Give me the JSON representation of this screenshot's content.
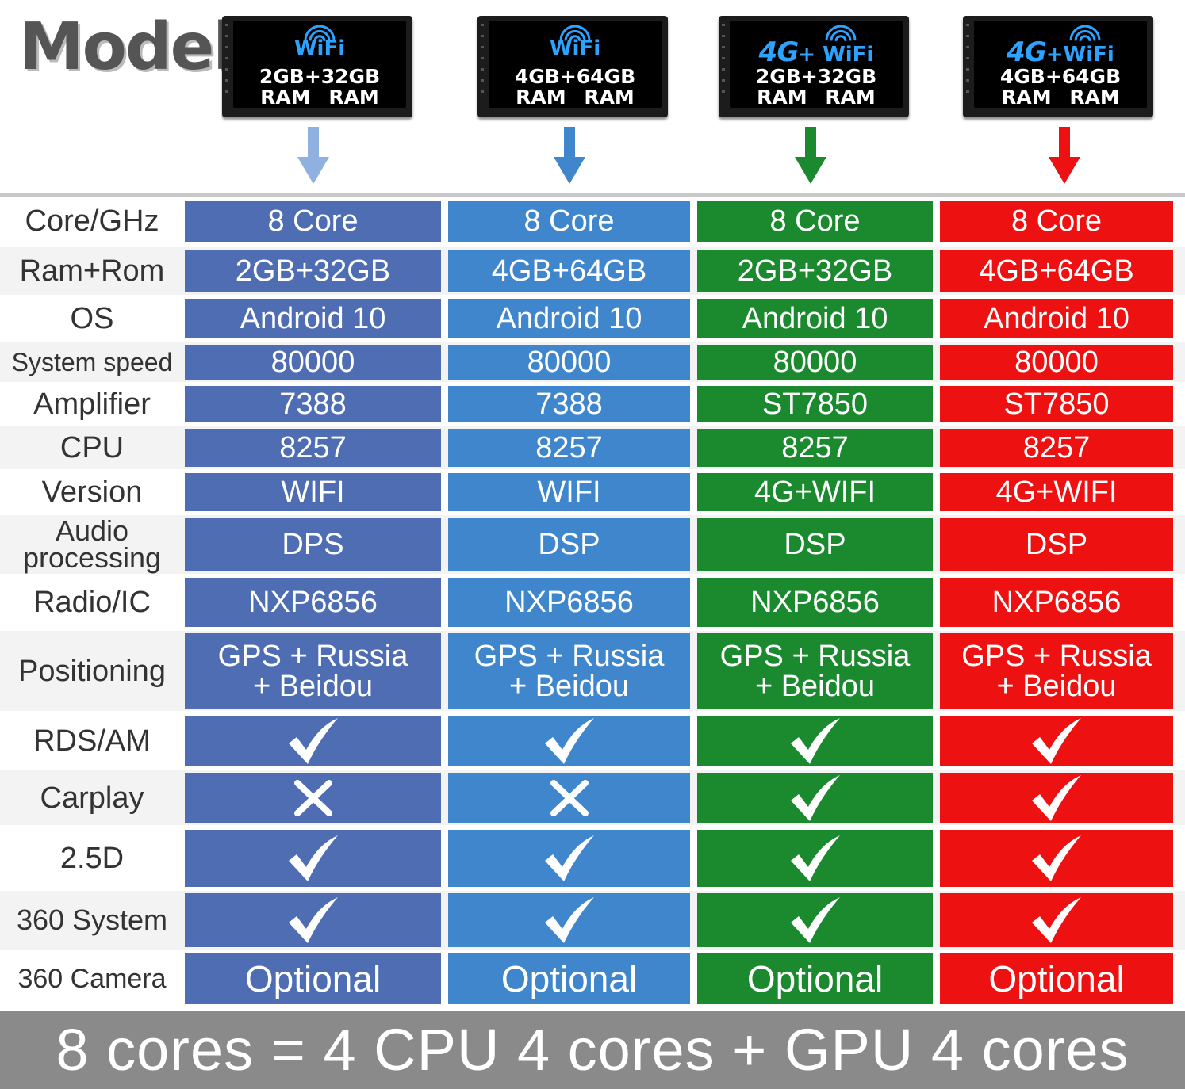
{
  "header": {
    "title": "Model"
  },
  "colors": {
    "col0": "#4f6db3",
    "col1": "#3f86cc",
    "col2": "#1b8a2e",
    "col3": "#ee1111",
    "arrow0": "#8fb1e0",
    "arrow1": "#3f86cc",
    "arrow2": "#1b8a2e",
    "arrow3": "#ee1111"
  },
  "models": [
    {
      "conn_4g": "",
      "conn_wifi": "WiFi",
      "mem": "2GB+32GB",
      "ram_line": "RAM RAM"
    },
    {
      "conn_4g": "",
      "conn_wifi": "WiFi",
      "mem": "4GB+64GB",
      "ram_line": "RAM RAM"
    },
    {
      "conn_4g": "4G",
      "conn_wifi": "+ WiFi",
      "mem": "2GB+32GB",
      "ram_line": "RAM RAM"
    },
    {
      "conn_4g": "4G",
      "conn_wifi": "+WiFi",
      "mem": "4GB+64GB",
      "ram_line": "RAM RAM"
    }
  ],
  "icons": {
    "check": "check-icon",
    "cross": "cross-icon",
    "wifi": "wifi-icon",
    "arrow": "arrow-down-icon"
  },
  "rows": [
    {
      "label": "Core/GHz",
      "values": [
        "8 Core",
        "8 Core",
        "8 Core",
        "8 Core"
      ]
    },
    {
      "label": "Ram+Rom",
      "values": [
        "2GB+32GB",
        "4GB+64GB",
        "2GB+32GB",
        "4GB+64GB"
      ]
    },
    {
      "label": "OS",
      "values": [
        "Android 10",
        "Android 10",
        "Android 10",
        "Android 10"
      ]
    },
    {
      "label": "System speed",
      "values": [
        "80000",
        "80000",
        "80000",
        "80000"
      ]
    },
    {
      "label": "Amplifier",
      "values": [
        "7388",
        "7388",
        "ST7850",
        "ST7850"
      ]
    },
    {
      "label": "CPU",
      "values": [
        "8257",
        "8257",
        "8257",
        "8257"
      ]
    },
    {
      "label": "Version",
      "values": [
        "WIFI",
        "WIFI",
        "4G+WIFI",
        "4G+WIFI"
      ]
    },
    {
      "label": "Audio processing",
      "values": [
        "DPS",
        "DSP",
        "DSP",
        "DSP"
      ]
    },
    {
      "label": "Radio/IC",
      "values": [
        "NXP6856",
        "NXP6856",
        "NXP6856",
        "NXP6856"
      ]
    },
    {
      "label": "Positioning",
      "values": [
        "GPS + Russia + Beidou",
        "GPS + Russia + Beidou",
        "GPS + Russia + Beidou",
        "GPS + Russia + Beidou"
      ]
    },
    {
      "label": "RDS/AM",
      "marks": [
        "check",
        "check",
        "check",
        "check"
      ]
    },
    {
      "label": "Carplay",
      "marks": [
        "cross",
        "cross",
        "check",
        "check"
      ]
    },
    {
      "label": "2.5D",
      "marks": [
        "check",
        "check",
        "check",
        "check"
      ]
    },
    {
      "label": "360 System",
      "marks": [
        "check",
        "check",
        "check",
        "check"
      ]
    },
    {
      "label": "360 Camera",
      "values": [
        "Optional",
        "Optional",
        "Optional",
        "Optional"
      ]
    }
  ],
  "footer": {
    "text": "8 cores = 4 CPU 4 cores + GPU 4 cores"
  }
}
